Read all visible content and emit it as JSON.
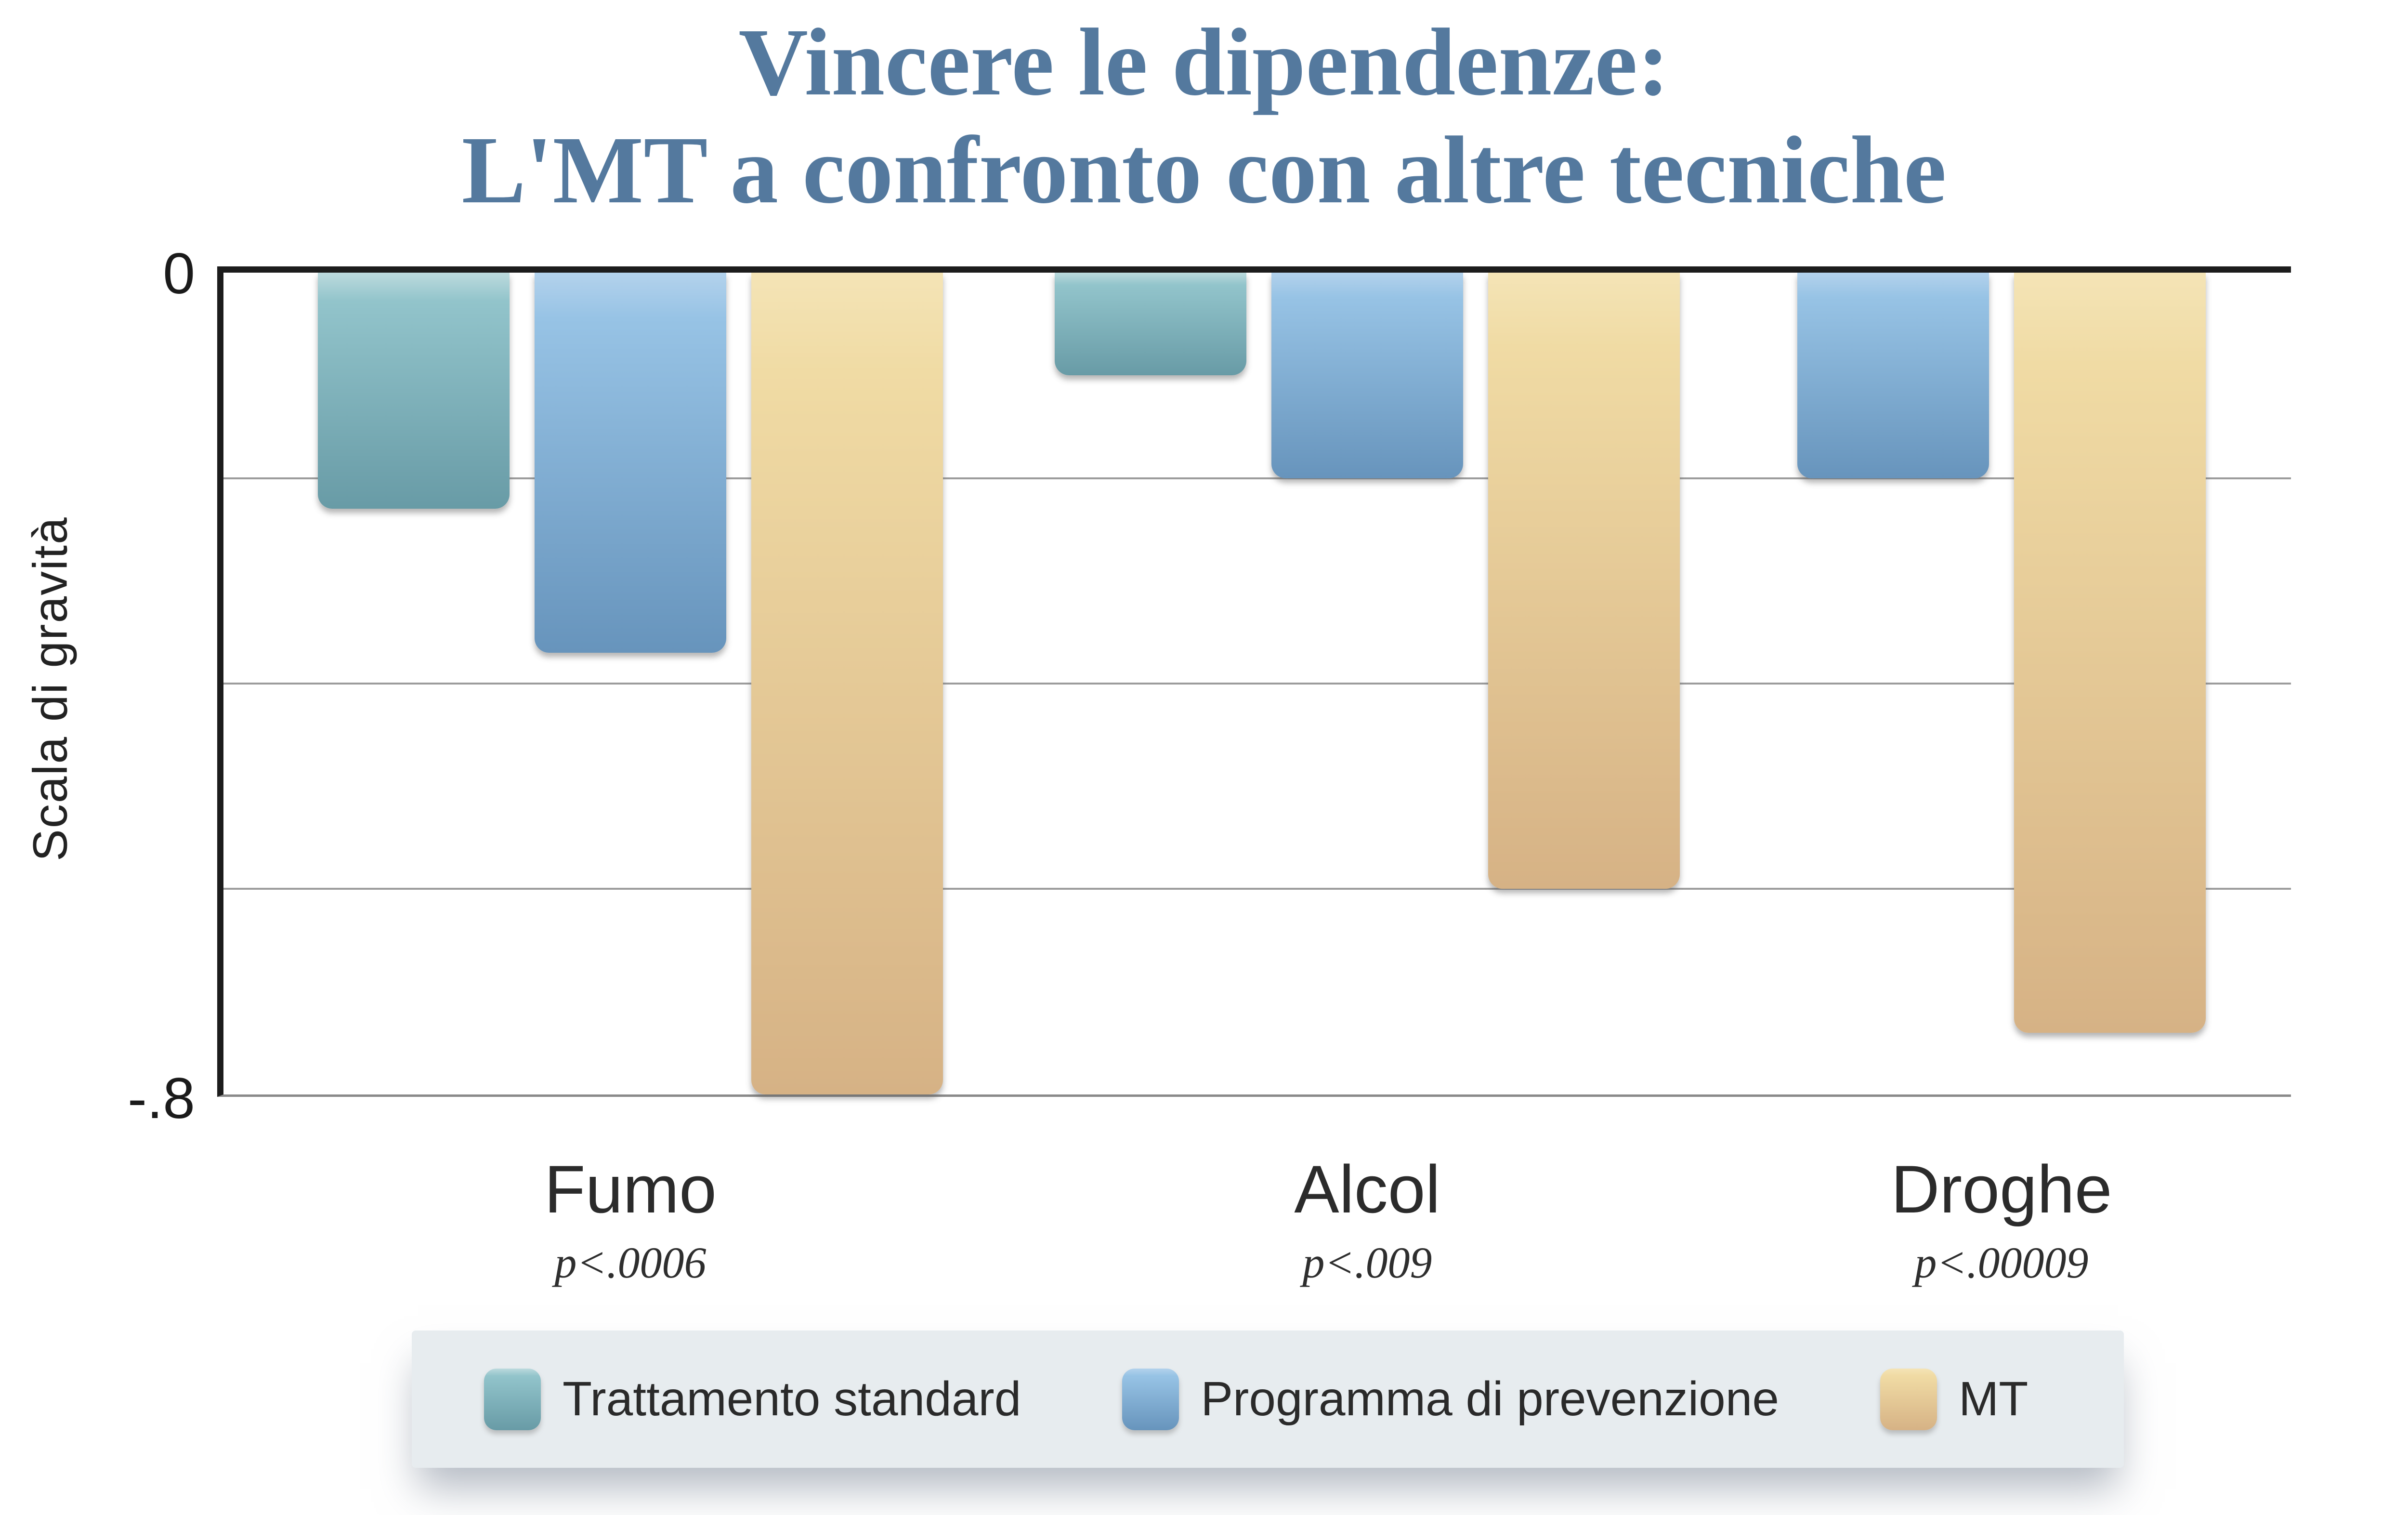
{
  "title": {
    "line1": "Vincere le dipendenze:",
    "line2": "L'MT a confronto con altre tecniche",
    "color": "#54799e"
  },
  "y_axis": {
    "title": "Scala di gravità",
    "tick_top": "0",
    "tick_bottom": "-.8"
  },
  "series_colors": {
    "standard": {
      "top": "#bcdadd",
      "mid": "#92c4cb",
      "bottom": "#689ba6"
    },
    "prevention": {
      "top": "#b3d2ec",
      "mid": "#97c3e5",
      "bottom": "#6794bc"
    },
    "mt": {
      "top": "#f4e4b6",
      "mid": "#f0dba4",
      "bottom": "#d6b285"
    }
  },
  "legend": {
    "items": [
      {
        "key": "standard",
        "label": "Trattamento standard"
      },
      {
        "key": "prevention",
        "label": "Programma di prevenzione"
      },
      {
        "key": "mt",
        "label": "MT"
      }
    ]
  },
  "chart_data": {
    "type": "bar",
    "categories": [
      "Fumo",
      "Alcol",
      "Droghe"
    ],
    "category_p_values": [
      "p<.0006",
      "p<.009",
      "p<.00009"
    ],
    "series": [
      {
        "key": "standard",
        "name": "Trattamento standard",
        "values": [
          -0.23,
          -0.1,
          null
        ]
      },
      {
        "key": "prevention",
        "name": "Programma di prevenzione",
        "values": [
          -0.37,
          -0.2,
          -0.2
        ]
      },
      {
        "key": "mt",
        "name": "MT",
        "values": [
          -0.8,
          -0.6,
          -0.74
        ]
      }
    ],
    "title": "Vincere le dipendenze: L'MT a confronto con altre tecniche",
    "xlabel": "",
    "ylabel": "Scala di gravità",
    "ylim": [
      -0.8,
      0
    ],
    "yticks_labeled": [
      0,
      -0.8
    ],
    "gridlines_at": [
      -0.2,
      -0.4,
      -0.6
    ],
    "grid": "horizontal",
    "bar_direction": "down",
    "legend_position": "bottom"
  }
}
